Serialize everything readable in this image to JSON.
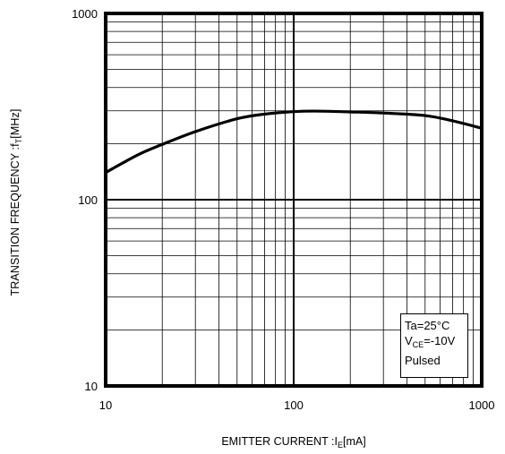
{
  "chart_data": {
    "type": "line",
    "xlabel_main": "EMITTER CURRENT :I",
    "xlabel_sub": "E",
    "xlabel_tail": "[mA]",
    "ylabel_main": "TRANSITION FREQUENCY :f",
    "ylabel_sub": "T",
    "ylabel_tail": "[MHz]",
    "xscale": "log",
    "yscale": "log",
    "xlim": [
      10,
      1000
    ],
    "ylim": [
      10,
      1000
    ],
    "x_ticks": [
      10,
      100,
      1000
    ],
    "x_tick_labels": [
      "10",
      "100",
      "1000"
    ],
    "y_ticks": [
      10,
      100,
      1000
    ],
    "y_tick_labels": [
      "10",
      "100",
      "1000"
    ],
    "grid": true,
    "legend_placement": "bottom-right",
    "annotations": {
      "line1": "Ta=25°C",
      "line2_main": "V",
      "line2_sub": "CE",
      "line2_tail": "=-10V",
      "line3": "Pulsed"
    },
    "series": [
      {
        "x": [
          10,
          15,
          20,
          30,
          50,
          70,
          100,
          130,
          200,
          300,
          500,
          700,
          1000
        ],
        "y": [
          140,
          175,
          198,
          232,
          272,
          288,
          297,
          299,
          296,
          292,
          283,
          265,
          242
        ]
      }
    ]
  }
}
